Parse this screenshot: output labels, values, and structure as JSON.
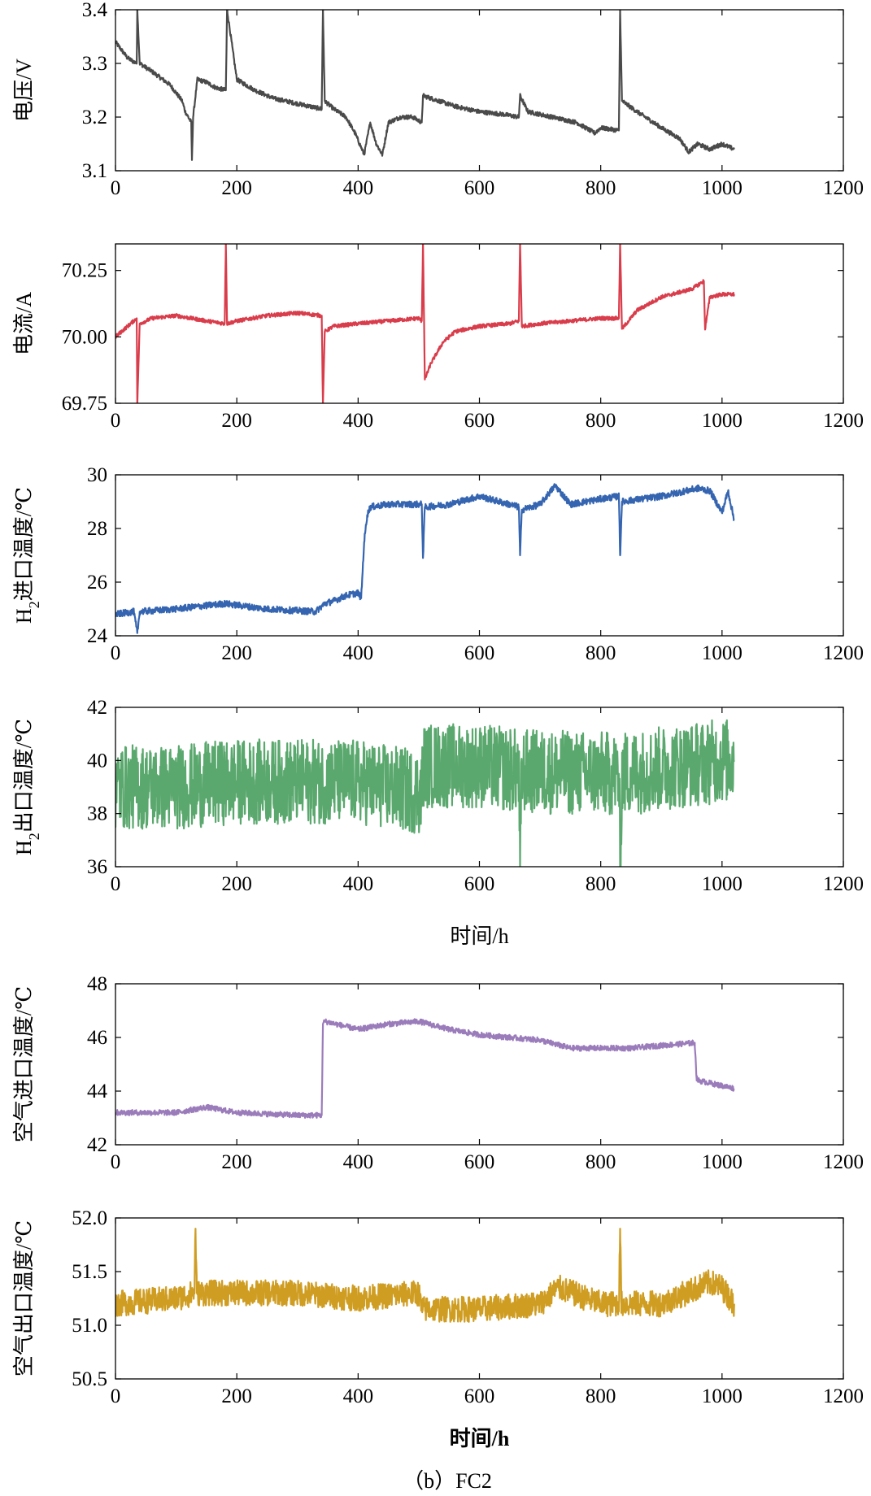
{
  "figure": {
    "caption": "（b）FC2",
    "xlabel_mid": "时间/h",
    "xlabel_bottom": "时间/h"
  },
  "chart_data": [
    {
      "type": "line",
      "name": "voltage",
      "ylabel": "电压/V",
      "ylabel_parts": [
        {
          "t": "电压/V",
          "sub": false
        }
      ],
      "color": "#4a4a4a",
      "xlim": [
        0,
        1200
      ],
      "ylim": [
        3.1,
        3.4
      ],
      "xticks": [
        0,
        200,
        400,
        600,
        800,
        1000,
        1200
      ],
      "xtick_labels": [
        "0",
        "200",
        "400",
        "600",
        "800",
        "1000",
        "1200"
      ],
      "yticks": [
        3.1,
        3.2,
        3.3,
        3.4
      ],
      "ytick_labels": [
        "3.1",
        "3.2",
        "3.3",
        "3.4"
      ],
      "noise": 0.004,
      "x": [
        0,
        20,
        35,
        36,
        40,
        60,
        90,
        110,
        115,
        125,
        126,
        128,
        135,
        150,
        165,
        182,
        184,
        200,
        230,
        260,
        300,
        340,
        342,
        345,
        360,
        380,
        395,
        410,
        420,
        430,
        440,
        450,
        470,
        490,
        505,
        507,
        520,
        560,
        600,
        640,
        665,
        667,
        680,
        720,
        760,
        790,
        800,
        830,
        832,
        835,
        860,
        900,
        930,
        945,
        960,
        980,
        1000,
        1020
      ],
      "y": [
        3.34,
        3.31,
        3.3,
        3.4,
        3.3,
        3.285,
        3.26,
        3.23,
        3.21,
        3.19,
        3.12,
        3.2,
        3.27,
        3.265,
        3.255,
        3.25,
        3.4,
        3.27,
        3.25,
        3.235,
        3.225,
        3.215,
        3.4,
        3.23,
        3.215,
        3.2,
        3.17,
        3.13,
        3.19,
        3.15,
        3.13,
        3.19,
        3.2,
        3.2,
        3.19,
        3.24,
        3.235,
        3.22,
        3.21,
        3.205,
        3.2,
        3.24,
        3.21,
        3.2,
        3.19,
        3.17,
        3.18,
        3.175,
        3.4,
        3.23,
        3.21,
        3.18,
        3.16,
        3.135,
        3.15,
        3.14,
        3.15,
        3.14
      ]
    },
    {
      "type": "line",
      "name": "current",
      "ylabel": "电流/A",
      "ylabel_parts": [
        {
          "t": "电流/A",
          "sub": false
        }
      ],
      "color": "#d93c4a",
      "xlim": [
        0,
        1200
      ],
      "ylim": [
        69.75,
        70.35
      ],
      "xticks": [
        0,
        200,
        400,
        600,
        800,
        1000,
        1200
      ],
      "xtick_labels": [
        "0",
        "200",
        "400",
        "600",
        "800",
        "1000",
        "1200"
      ],
      "yticks": [
        69.75,
        70.0,
        70.25
      ],
      "ytick_labels": [
        "69.75",
        "70.00",
        "70.25"
      ],
      "noise": 0.007,
      "x": [
        0,
        15,
        30,
        35,
        36,
        40,
        60,
        100,
        150,
        180,
        182,
        184,
        200,
        250,
        300,
        340,
        342,
        345,
        360,
        400,
        450,
        500,
        505,
        507,
        510,
        520,
        540,
        560,
        600,
        650,
        665,
        667,
        670,
        700,
        750,
        800,
        830,
        832,
        835,
        860,
        900,
        950,
        970,
        972,
        980,
        1000,
        1020
      ],
      "y": [
        70.0,
        70.03,
        70.06,
        70.07,
        69.75,
        70.05,
        70.07,
        70.08,
        70.06,
        70.05,
        70.35,
        70.05,
        70.06,
        70.08,
        70.09,
        70.08,
        69.75,
        70.02,
        70.04,
        70.05,
        70.06,
        70.07,
        70.06,
        70.35,
        69.84,
        69.9,
        69.98,
        70.02,
        70.04,
        70.05,
        70.06,
        70.35,
        70.04,
        70.05,
        70.06,
        70.07,
        70.07,
        70.35,
        70.03,
        70.1,
        70.15,
        70.18,
        70.21,
        70.03,
        70.15,
        70.16,
        70.16
      ]
    },
    {
      "type": "line",
      "name": "h2-inlet-temp",
      "ylabel": "H2进口温度/℃",
      "ylabel_parts": [
        {
          "t": "H",
          "sub": false
        },
        {
          "t": "2",
          "sub": true
        },
        {
          "t": "进口温度/℃",
          "sub": false
        }
      ],
      "color": "#3565b0",
      "xlim": [
        0,
        1200
      ],
      "ylim": [
        24,
        30
      ],
      "xticks": [
        0,
        200,
        400,
        600,
        800,
        1000,
        1200
      ],
      "xtick_labels": [
        "0",
        "200",
        "400",
        "600",
        "800",
        "1000",
        "1200"
      ],
      "yticks": [
        24,
        26,
        28,
        30
      ],
      "ytick_labels": [
        "24",
        "26",
        "28",
        "30"
      ],
      "noise": 0.12,
      "x": [
        0,
        30,
        36,
        40,
        100,
        180,
        250,
        330,
        345,
        360,
        380,
        400,
        405,
        410,
        415,
        420,
        450,
        505,
        507,
        510,
        550,
        600,
        665,
        667,
        670,
        700,
        725,
        750,
        800,
        830,
        832,
        835,
        900,
        960,
        980,
        1000,
        1010,
        1020
      ],
      "y": [
        24.8,
        24.9,
        24.1,
        24.9,
        25.0,
        25.2,
        25.0,
        24.9,
        25.2,
        25.3,
        25.5,
        25.6,
        25.4,
        27.5,
        28.5,
        28.8,
        28.9,
        28.9,
        26.9,
        28.8,
        28.9,
        29.2,
        28.8,
        27.0,
        28.7,
        28.9,
        29.6,
        28.9,
        29.1,
        29.2,
        27.0,
        29.0,
        29.2,
        29.5,
        29.4,
        28.6,
        29.4,
        28.3
      ]
    },
    {
      "type": "line",
      "name": "h2-outlet-temp",
      "ylabel": "H2出口温度/℃",
      "ylabel_parts": [
        {
          "t": "H",
          "sub": false
        },
        {
          "t": "2",
          "sub": true
        },
        {
          "t": "出口温度/℃",
          "sub": false
        }
      ],
      "color": "#5aa86e",
      "xlim": [
        0,
        1200
      ],
      "ylim": [
        36,
        42
      ],
      "xticks": [
        0,
        200,
        400,
        600,
        800,
        1000,
        1200
      ],
      "xtick_labels": [
        "0",
        "200",
        "400",
        "600",
        "800",
        "1000",
        "1200"
      ],
      "yticks": [
        36,
        38,
        40,
        42
      ],
      "ytick_labels": [
        "36",
        "38",
        "40",
        "42"
      ],
      "noise": 1.6,
      "x": [
        0,
        100,
        200,
        300,
        400,
        500,
        505,
        507,
        600,
        665,
        667,
        670,
        800,
        830,
        832,
        835,
        1000,
        1020
      ],
      "y": [
        39.0,
        39.0,
        39.2,
        39.2,
        39.2,
        38.8,
        38.8,
        39.8,
        39.8,
        39.6,
        36.0,
        39.6,
        39.5,
        39.5,
        36.0,
        39.5,
        40.0,
        40.0
      ]
    },
    {
      "type": "line",
      "name": "air-inlet-temp",
      "ylabel": "空气进口温度/℃",
      "ylabel_parts": [
        {
          "t": "空气进口温度/℃",
          "sub": false
        }
      ],
      "color": "#9b7cbb",
      "xlim": [
        0,
        1200
      ],
      "ylim": [
        42,
        48
      ],
      "xticks": [
        0,
        200,
        400,
        600,
        800,
        1000,
        1200
      ],
      "xtick_labels": [
        "0",
        "200",
        "400",
        "600",
        "800",
        "1000",
        "1200"
      ],
      "yticks": [
        42,
        44,
        46,
        48
      ],
      "ytick_labels": [
        "42",
        "44",
        "46",
        "48"
      ],
      "noise": 0.1,
      "x": [
        0,
        100,
        150,
        200,
        300,
        340,
        342,
        345,
        400,
        450,
        500,
        550,
        600,
        650,
        700,
        750,
        800,
        850,
        900,
        955,
        958,
        960,
        980,
        1000,
        1020
      ],
      "y": [
        43.2,
        43.2,
        43.4,
        43.2,
        43.1,
        43.1,
        46.5,
        46.6,
        46.3,
        46.5,
        46.6,
        46.3,
        46.1,
        46.0,
        45.9,
        45.6,
        45.6,
        45.6,
        45.7,
        45.8,
        44.5,
        44.4,
        44.3,
        44.2,
        44.1
      ]
    },
    {
      "type": "line",
      "name": "air-outlet-temp",
      "ylabel": "空气出口温度/℃",
      "ylabel_parts": [
        {
          "t": "空气出口温度/℃",
          "sub": false
        }
      ],
      "color": "#cf9d22",
      "xlim": [
        0,
        1200
      ],
      "ylim": [
        50.5,
        52.0
      ],
      "xticks": [
        0,
        200,
        400,
        600,
        800,
        1000,
        1200
      ],
      "xtick_labels": [
        "0",
        "200",
        "400",
        "600",
        "800",
        "1000",
        "1200"
      ],
      "yticks": [
        50.5,
        51.0,
        51.5,
        52.0
      ],
      "ytick_labels": [
        "50.5",
        "51.0",
        "51.5",
        "52.0"
      ],
      "noise": 0.12,
      "x": [
        0,
        100,
        130,
        132,
        134,
        200,
        300,
        400,
        500,
        505,
        600,
        700,
        730,
        800,
        830,
        832,
        834,
        900,
        980,
        1000,
        1020
      ],
      "y": [
        51.2,
        51.25,
        51.3,
        51.9,
        51.3,
        51.3,
        51.3,
        51.25,
        51.3,
        51.15,
        51.15,
        51.2,
        51.35,
        51.2,
        51.2,
        51.9,
        51.2,
        51.2,
        51.4,
        51.35,
        51.2
      ]
    }
  ]
}
